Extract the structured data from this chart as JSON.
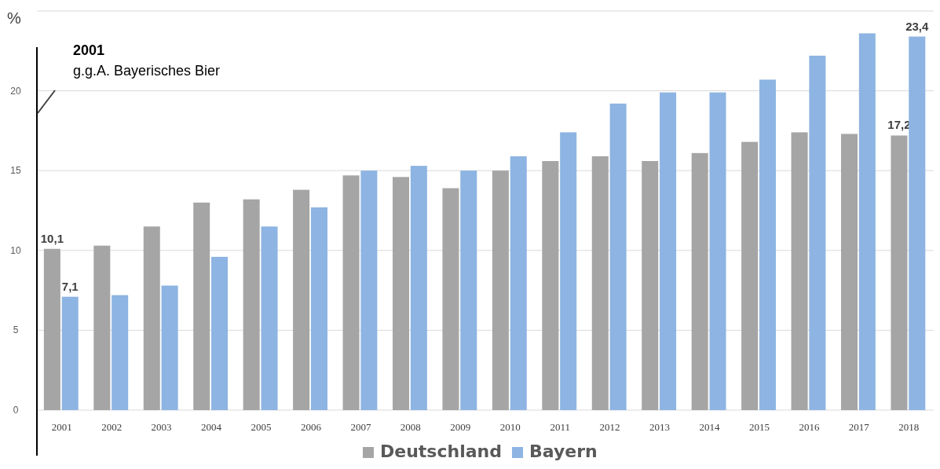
{
  "chart_data": {
    "type": "bar",
    "ylabel": "%",
    "annotations": [
      "2001",
      "g.g.A. Bayerisches Bier"
    ],
    "categories": [
      "2001",
      "2002",
      "2003",
      "2004",
      "2005",
      "2006",
      "2007",
      "2008",
      "2009",
      "2010",
      "2011",
      "2012",
      "2013",
      "2014",
      "2015",
      "2016",
      "2017",
      "2018"
    ],
    "series": [
      {
        "name": "Deutschland",
        "color": "#a5a5a5",
        "values": [
          10.1,
          10.3,
          11.5,
          13.0,
          13.2,
          13.8,
          14.7,
          14.6,
          13.9,
          15.0,
          15.6,
          15.9,
          15.6,
          16.1,
          16.8,
          17.4,
          17.3,
          17.2
        ],
        "value_labels": [
          "10,1",
          null,
          null,
          null,
          null,
          null,
          null,
          null,
          null,
          null,
          null,
          null,
          null,
          null,
          null,
          null,
          null,
          "17,2"
        ]
      },
      {
        "name": "Bayern",
        "color": "#8db4e2",
        "values": [
          7.1,
          7.2,
          7.8,
          9.6,
          11.5,
          12.7,
          15.0,
          15.3,
          15.0,
          15.9,
          17.4,
          19.2,
          19.9,
          19.9,
          20.7,
          22.2,
          23.6,
          23.4
        ],
        "value_labels": [
          "7,1",
          null,
          null,
          null,
          null,
          null,
          null,
          null,
          null,
          null,
          null,
          null,
          null,
          null,
          null,
          null,
          null,
          "23,4"
        ]
      }
    ],
    "ylim": [
      0,
      25
    ],
    "yticks": [
      0,
      5,
      10,
      15,
      20,
      {
        "value": 25,
        "label": null
      }
    ],
    "grid": "y",
    "legend": "bottom"
  }
}
